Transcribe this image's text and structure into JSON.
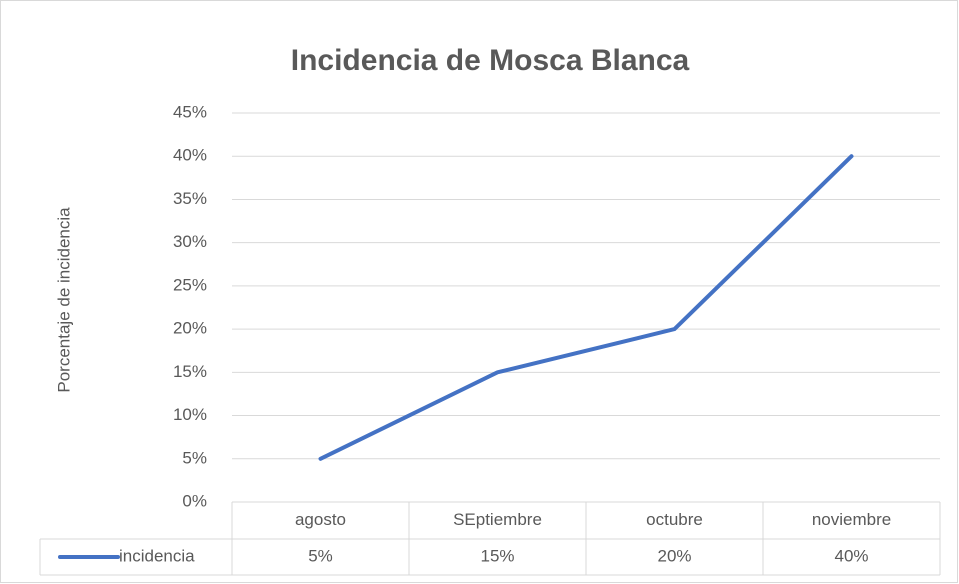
{
  "chart_data": {
    "type": "line",
    "title": "Incidencia de Mosca Blanca",
    "y_label": "Porcentaje de incidencia",
    "categories": [
      "agosto",
      "SEptiembre",
      "octubre",
      "noviembre"
    ],
    "series": [
      {
        "name": "incidencia",
        "color": "#4472c4",
        "values": [
          5,
          15,
          20,
          40
        ],
        "value_labels": [
          "5%",
          "15%",
          "20%",
          "40%"
        ]
      }
    ],
    "ylim": [
      0,
      45
    ],
    "yticks": [
      {
        "value": 0,
        "label": "0%"
      },
      {
        "value": 5,
        "label": "5%"
      },
      {
        "value": 10,
        "label": "10%"
      },
      {
        "value": 15,
        "label": "15%"
      },
      {
        "value": 20,
        "label": "20%"
      },
      {
        "value": 25,
        "label": "25%"
      },
      {
        "value": 30,
        "label": "30%"
      },
      {
        "value": 35,
        "label": "35%"
      },
      {
        "value": 40,
        "label": "40%"
      },
      {
        "value": 45,
        "label": "45%"
      }
    ],
    "grid": true,
    "data_table": true
  }
}
